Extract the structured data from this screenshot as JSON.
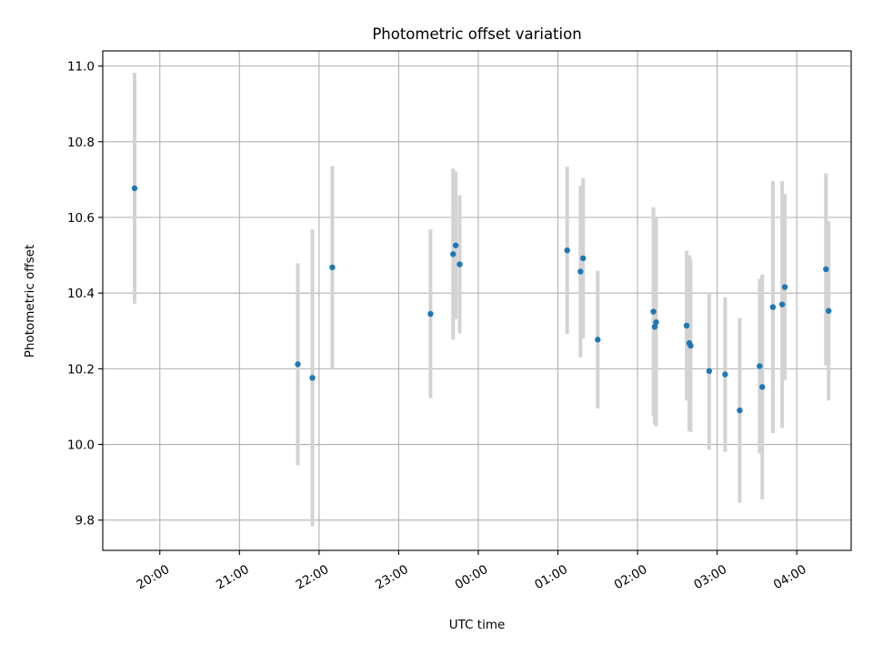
{
  "chart_data": {
    "type": "scatter",
    "title": "Photometric offset variation",
    "xlabel": "UTC time",
    "ylabel": "Photometric offset",
    "x_axis": {
      "kind": "time",
      "range": [
        "19:17",
        "04:41"
      ],
      "ticks": [
        "20:00",
        "21:00",
        "22:00",
        "23:00",
        "00:00",
        "01:00",
        "02:00",
        "03:00",
        "04:00"
      ]
    },
    "y_axis": {
      "range": [
        9.72,
        11.04
      ],
      "ticks": [
        "9.8",
        "10.0",
        "10.2",
        "10.4",
        "10.6",
        "10.8",
        "11.0"
      ]
    },
    "grid": true,
    "colors": {
      "points": "#1f77b4",
      "errorbars": "#d3d3d3",
      "grid": "#b0b0b0"
    },
    "series": [
      {
        "points": [
          {
            "t": "19:41",
            "y": 10.677,
            "err": 0.305
          },
          {
            "t": "21:44",
            "y": 10.212,
            "err": 0.267
          },
          {
            "t": "21:55",
            "y": 10.176,
            "err": 0.392
          },
          {
            "t": "22:10",
            "y": 10.468,
            "err": 0.268
          },
          {
            "t": "23:24",
            "y": 10.345,
            "err": 0.223
          },
          {
            "t": "23:41",
            "y": 10.503,
            "err": 0.226
          },
          {
            "t": "23:43",
            "y": 10.526,
            "err": 0.195
          },
          {
            "t": "23:46",
            "y": 10.476,
            "err": 0.183
          },
          {
            "t": "01:07",
            "y": 10.513,
            "err": 0.221
          },
          {
            "t": "01:17",
            "y": 10.457,
            "err": 0.227
          },
          {
            "t": "01:19",
            "y": 10.492,
            "err": 0.212
          },
          {
            "t": "01:30",
            "y": 10.277,
            "err": 0.182
          },
          {
            "t": "02:12",
            "y": 10.351,
            "err": 0.276
          },
          {
            "t": "02:13",
            "y": 10.311,
            "err": 0.258
          },
          {
            "t": "02:14",
            "y": 10.323,
            "err": 0.275
          },
          {
            "t": "02:37",
            "y": 10.314,
            "err": 0.198
          },
          {
            "t": "02:39",
            "y": 10.268,
            "err": 0.232
          },
          {
            "t": "02:40",
            "y": 10.261,
            "err": 0.228
          },
          {
            "t": "02:54",
            "y": 10.194,
            "err": 0.208
          },
          {
            "t": "03:06",
            "y": 10.185,
            "err": 0.204
          },
          {
            "t": "03:17",
            "y": 10.09,
            "err": 0.244
          },
          {
            "t": "03:32",
            "y": 10.207,
            "err": 0.231
          },
          {
            "t": "03:34",
            "y": 10.152,
            "err": 0.297
          },
          {
            "t": "03:42",
            "y": 10.363,
            "err": 0.333
          },
          {
            "t": "03:49",
            "y": 10.37,
            "err": 0.326
          },
          {
            "t": "03:51",
            "y": 10.416,
            "err": 0.246
          },
          {
            "t": "04:22",
            "y": 10.463,
            "err": 0.254
          },
          {
            "t": "04:24",
            "y": 10.353,
            "err": 0.237
          }
        ]
      }
    ]
  }
}
